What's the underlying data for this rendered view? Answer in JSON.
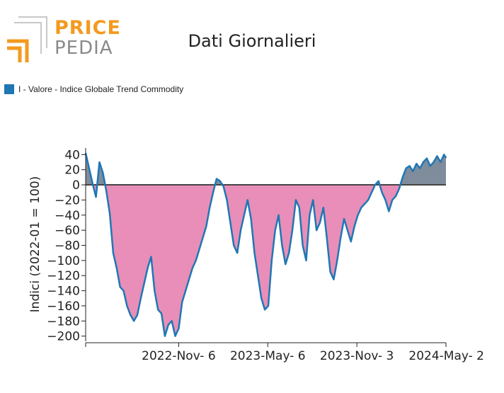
{
  "logo": {
    "word1": "PRICE",
    "word2": "PEDIA"
  },
  "chart_data": {
    "type": "area",
    "title": "Dati Giornalieri",
    "ylabel": "Indici (2022-01 = 100)",
    "xlabel": "",
    "ylim": [
      -205,
      45
    ],
    "yticks": [
      40,
      20,
      0,
      -20,
      -40,
      -60,
      -80,
      -100,
      -120,
      -140,
      -160,
      -180,
      -200
    ],
    "xlim": [
      "2022-05-01",
      "2024-05-02"
    ],
    "xticks": [
      "2022-Nov- 6",
      "2023-May- 6",
      "2023-Nov- 3",
      "2024-May- 2"
    ],
    "xtick_dates": [
      "2022-11-06",
      "2023-05-06",
      "2023-11-03",
      "2024-05-02"
    ],
    "baseline": 0,
    "grid": false,
    "legend_position": "top-left",
    "colors": {
      "line": "#1f77b4",
      "below": "#e98eb8",
      "above": "#7f8c9c",
      "baseline": "#444444"
    },
    "series": [
      {
        "name": "I - Valore - Indice Globale Trend Commodity",
        "x": [
          "2022-05-01",
          "2022-05-08",
          "2022-05-15",
          "2022-05-22",
          "2022-05-29",
          "2022-06-05",
          "2022-06-12",
          "2022-06-19",
          "2022-06-26",
          "2022-07-03",
          "2022-07-10",
          "2022-07-17",
          "2022-07-24",
          "2022-07-31",
          "2022-08-07",
          "2022-08-14",
          "2022-08-21",
          "2022-08-28",
          "2022-09-04",
          "2022-09-11",
          "2022-09-18",
          "2022-09-25",
          "2022-10-02",
          "2022-10-09",
          "2022-10-16",
          "2022-10-23",
          "2022-10-30",
          "2022-11-06",
          "2022-11-13",
          "2022-11-20",
          "2022-11-27",
          "2022-12-04",
          "2022-12-11",
          "2022-12-18",
          "2022-12-25",
          "2023-01-01",
          "2023-01-08",
          "2023-01-15",
          "2023-01-22",
          "2023-01-29",
          "2023-02-05",
          "2023-02-12",
          "2023-02-19",
          "2023-02-26",
          "2023-03-05",
          "2023-03-12",
          "2023-03-19",
          "2023-03-26",
          "2023-04-02",
          "2023-04-09",
          "2023-04-16",
          "2023-04-23",
          "2023-04-30",
          "2023-05-07",
          "2023-05-14",
          "2023-05-21",
          "2023-05-28",
          "2023-06-04",
          "2023-06-11",
          "2023-06-18",
          "2023-06-25",
          "2023-07-02",
          "2023-07-09",
          "2023-07-16",
          "2023-07-23",
          "2023-07-30",
          "2023-08-06",
          "2023-08-13",
          "2023-08-20",
          "2023-08-27",
          "2023-09-03",
          "2023-09-10",
          "2023-09-17",
          "2023-09-24",
          "2023-10-01",
          "2023-10-08",
          "2023-10-15",
          "2023-10-22",
          "2023-10-29",
          "2023-11-05",
          "2023-11-12",
          "2023-11-19",
          "2023-11-26",
          "2023-12-03",
          "2023-12-10",
          "2023-12-17",
          "2023-12-24",
          "2023-12-31",
          "2024-01-07",
          "2024-01-14",
          "2024-01-21",
          "2024-01-28",
          "2024-02-04",
          "2024-02-11",
          "2024-02-18",
          "2024-02-25",
          "2024-03-03",
          "2024-03-10",
          "2024-03-17",
          "2024-03-24",
          "2024-03-31",
          "2024-04-07",
          "2024-04-14",
          "2024-04-21",
          "2024-04-28",
          "2024-05-02"
        ],
        "values": [
          42,
          22,
          2,
          -16,
          30,
          16,
          -8,
          -38,
          -90,
          -110,
          -135,
          -140,
          -160,
          -172,
          -180,
          -172,
          -150,
          -130,
          -110,
          -95,
          -140,
          -165,
          -170,
          -200,
          -185,
          -180,
          -200,
          -190,
          -155,
          -140,
          -125,
          -110,
          -100,
          -85,
          -70,
          -55,
          -30,
          -10,
          8,
          5,
          -2,
          -20,
          -50,
          -80,
          -90,
          -60,
          -40,
          -20,
          -45,
          -90,
          -120,
          -150,
          -165,
          -160,
          -100,
          -60,
          -40,
          -80,
          -105,
          -90,
          -60,
          -20,
          -30,
          -80,
          -100,
          -40,
          -20,
          -60,
          -50,
          -30,
          -70,
          -115,
          -125,
          -100,
          -70,
          -45,
          -60,
          -75,
          -55,
          -40,
          -30,
          -25,
          -20,
          -10,
          0,
          5,
          -10,
          -20,
          -35,
          -20,
          -15,
          -5,
          10,
          22,
          25,
          18,
          28,
          22,
          30,
          35,
          25,
          30,
          38,
          30,
          40,
          36
        ]
      }
    ]
  }
}
